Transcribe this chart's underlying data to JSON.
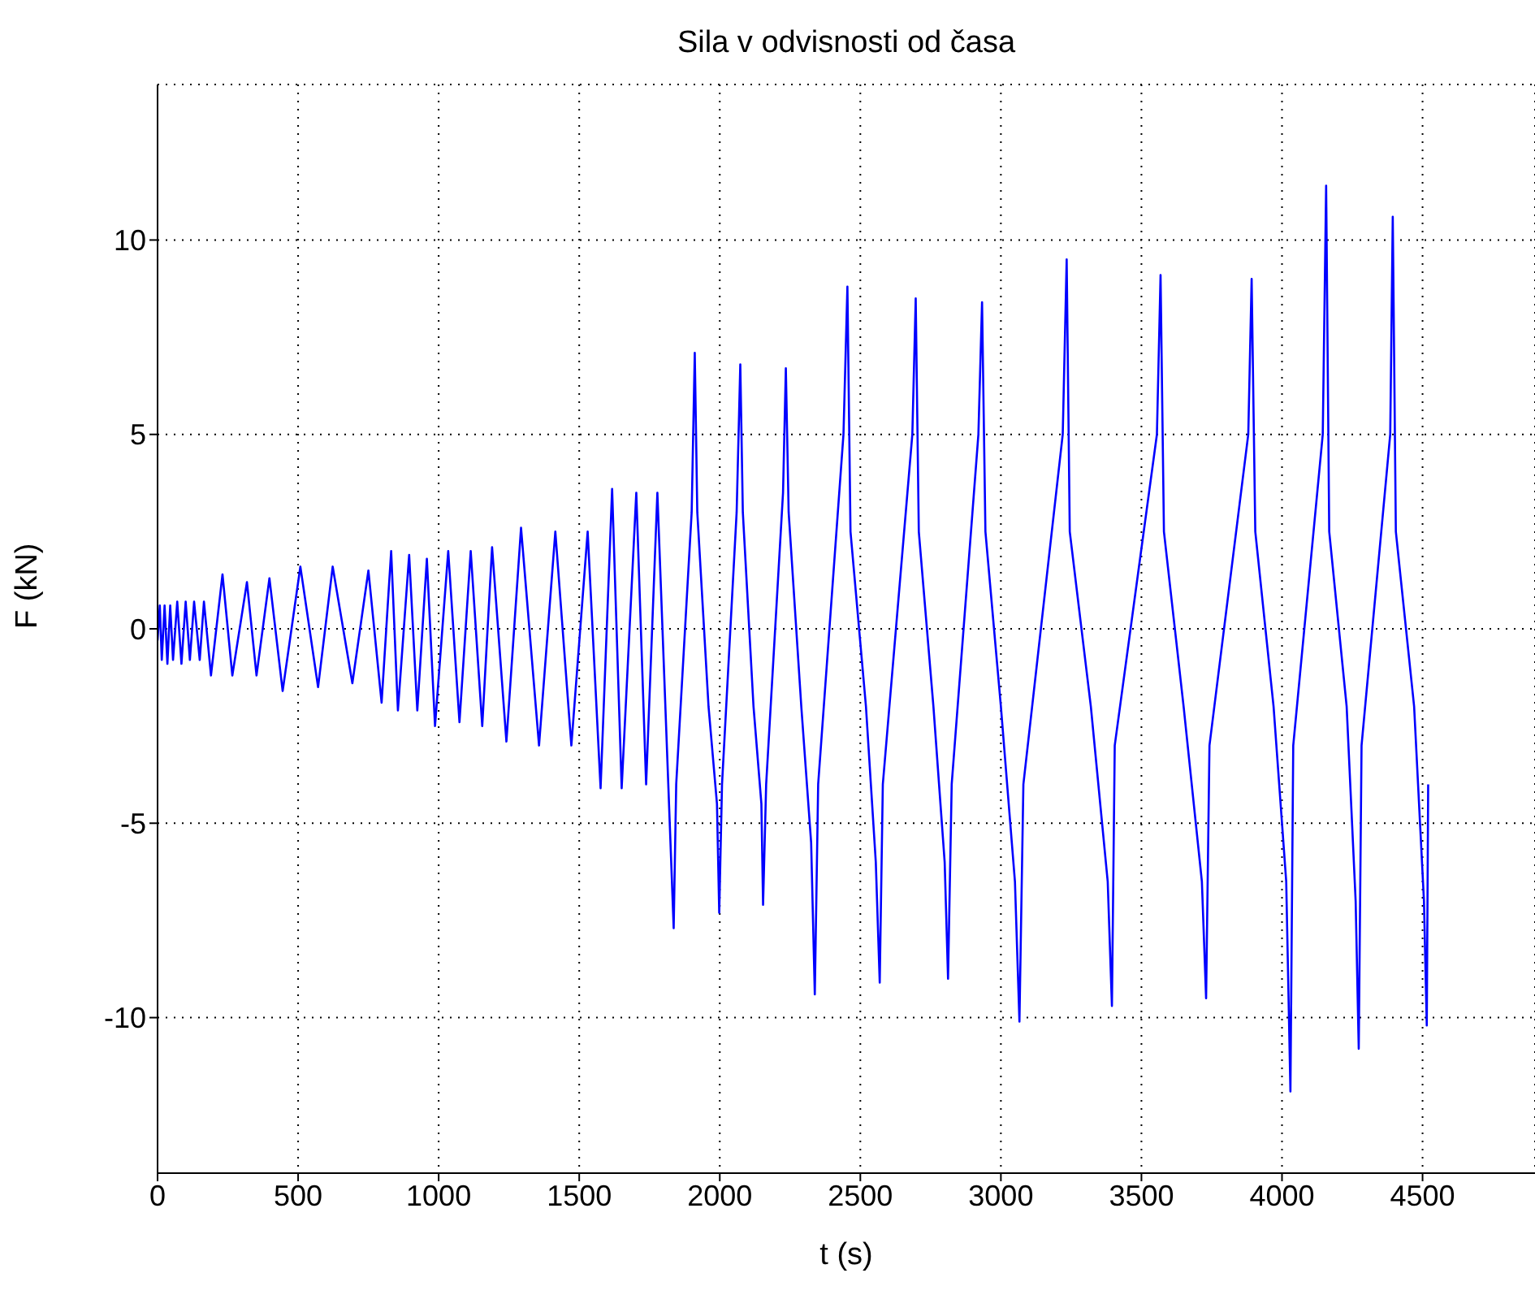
{
  "chart_data": {
    "type": "line",
    "title": "Sila v odvisnosti od časa",
    "xlabel": "t (s)",
    "ylabel": "F (kN)",
    "xlim": [
      0,
      4900
    ],
    "xticks": [
      0,
      500,
      1000,
      1500,
      2000,
      2500,
      3000,
      3500,
      4000,
      4500
    ],
    "ylim": [
      -14,
      14
    ],
    "yticks": [
      -10,
      -5,
      0,
      5,
      10
    ],
    "grid": true,
    "line_style": "solid",
    "series": [
      {
        "color": "#0000ff",
        "x": [
          0,
          8,
          15,
          25,
          35,
          45,
          55,
          70,
          85,
          100,
          115,
          130,
          150,
          165,
          190,
          231,
          266,
          318,
          352,
          398,
          445,
          508,
          571,
          623,
          693,
          750,
          797,
          831,
          855,
          895,
          924,
          958,
          987,
          1034,
          1074,
          1114,
          1155,
          1190,
          1241,
          1293,
          1357,
          1415,
          1472,
          1530,
          1576,
          1617,
          1651,
          1703,
          1738,
          1778,
          1836,
          1845,
          1900,
          1911,
          1920,
          1960,
          1990,
          1998,
          2008,
          2060,
          2073,
          2082,
          2120,
          2148,
          2154,
          2165,
          2225,
          2235,
          2245,
          2290,
          2325,
          2338,
          2350,
          2440,
          2454,
          2465,
          2520,
          2555,
          2569,
          2580,
          2685,
          2697,
          2708,
          2760,
          2800,
          2812,
          2825,
          2920,
          2933,
          2945,
          3000,
          3050,
          3066,
          3080,
          3220,
          3234,
          3245,
          3320,
          3380,
          3395,
          3405,
          3555,
          3568,
          3580,
          3650,
          3715,
          3730,
          3742,
          3880,
          3892,
          3905,
          3970,
          4015,
          4030,
          4040,
          4145,
          4157,
          4168,
          4230,
          4262,
          4273,
          4283,
          4385,
          4394,
          4405,
          4470,
          4505,
          4515,
          4520
        ],
        "values": [
          -0.3,
          0.6,
          -0.8,
          0.6,
          -0.9,
          0.6,
          -0.8,
          0.7,
          -0.9,
          0.7,
          -0.8,
          0.7,
          -0.8,
          0.7,
          -1.2,
          1.4,
          -1.2,
          1.2,
          -1.2,
          1.3,
          -1.6,
          1.6,
          -1.5,
          1.6,
          -1.4,
          1.5,
          -1.9,
          2,
          -2.1,
          1.9,
          -2.1,
          1.8,
          -2.5,
          2,
          -2.4,
          2,
          -2.5,
          2.1,
          -2.9,
          2.6,
          -3,
          2.5,
          -3,
          2.5,
          -4.1,
          3.6,
          -4.1,
          3.5,
          -4,
          3.5,
          -7.7,
          -4,
          3,
          7.1,
          3,
          -2,
          -4.5,
          -7.3,
          -4,
          3,
          6.8,
          3,
          -2,
          -4.5,
          -7.1,
          -4,
          3.5,
          6.7,
          3,
          -2,
          -5.5,
          -9.4,
          -4,
          5,
          8.8,
          2.5,
          -2,
          -6,
          -9.1,
          -4,
          5,
          8.5,
          2.5,
          -2,
          -6,
          -9,
          -4,
          5,
          8.4,
          2.5,
          -2,
          -6.5,
          -10.1,
          -4,
          5,
          9.5,
          2.5,
          -2,
          -6.5,
          -9.7,
          -3,
          5,
          9.1,
          2.5,
          -2,
          -6.5,
          -9.5,
          -3,
          5,
          9,
          2.5,
          -2,
          -6.5,
          -11.9,
          -3,
          5,
          11.4,
          2.5,
          -2,
          -7,
          -10.8,
          -3,
          5,
          10.6,
          2.5,
          -2,
          -7,
          -10.2,
          -4
        ]
      }
    ]
  }
}
